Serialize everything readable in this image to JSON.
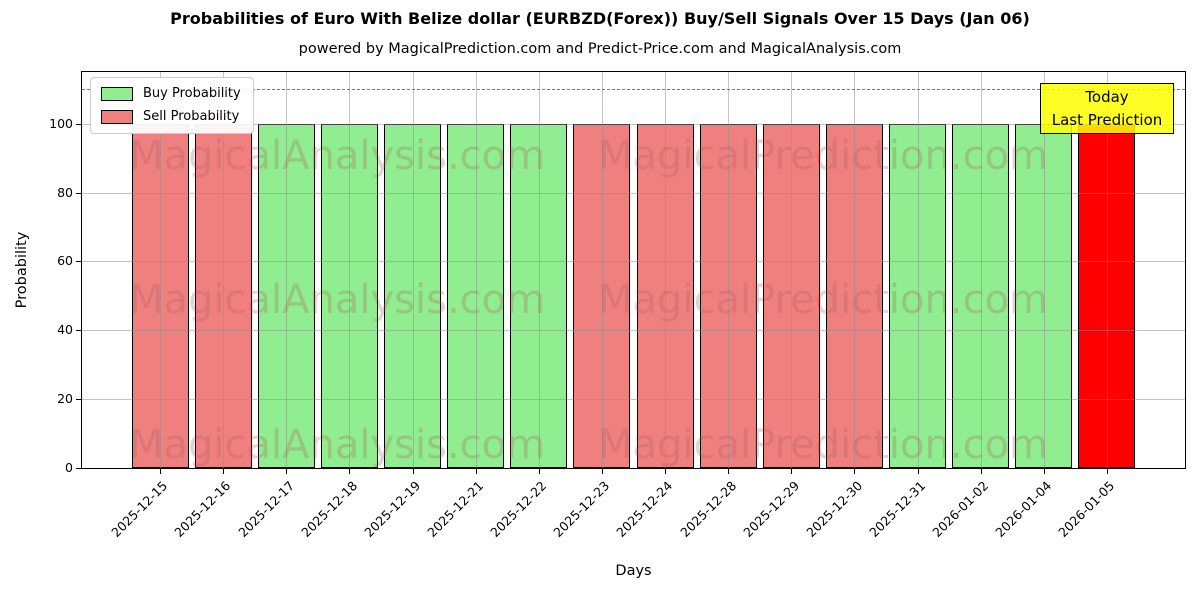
{
  "header": {
    "title": "Probabilities of Euro With Belize dollar (EURBZD(Forex)) Buy/Sell Signals Over 15 Days (Jan 06)",
    "subtitle": "powered by MagicalPrediction.com and Predict-Price.com and MagicalAnalysis.com"
  },
  "chart_data": {
    "type": "bar",
    "title": "Probabilities of Euro With Belize dollar (EURBZD(Forex)) Buy/Sell Signals Over 15 Days (Jan 06)",
    "xlabel": "Days",
    "ylabel": "Probability",
    "ylim": [
      0,
      115
    ],
    "yticks": [
      0,
      20,
      40,
      60,
      80,
      100
    ],
    "grid": true,
    "categories": [
      "2025-12-15",
      "2025-12-16",
      "2025-12-17",
      "2025-12-18",
      "2025-12-19",
      "2025-12-21",
      "2025-12-22",
      "2025-12-23",
      "2025-12-24",
      "2025-12-28",
      "2025-12-29",
      "2025-12-30",
      "2025-12-31",
      "2026-01-02",
      "2026-01-04",
      "2026-01-05"
    ],
    "values": [
      100,
      100,
      100,
      100,
      100,
      100,
      100,
      100,
      100,
      100,
      100,
      100,
      100,
      100,
      100,
      100
    ],
    "bar_signals": [
      "sell",
      "sell",
      "buy",
      "buy",
      "buy",
      "buy",
      "buy",
      "sell",
      "sell",
      "sell",
      "sell",
      "sell",
      "buy",
      "buy",
      "buy",
      "today"
    ],
    "signal_colors": {
      "buy": "#90ee90",
      "sell": "#f08080",
      "today": "#ff0000"
    },
    "dashed_line_y": 110,
    "legend": {
      "position": "upper left",
      "entries": [
        {
          "label": "Buy Probability",
          "color": "#90ee90",
          "signal": "buy"
        },
        {
          "label": "Sell Probability",
          "color": "#f08080",
          "signal": "sell"
        }
      ]
    },
    "annotation": {
      "lines": [
        "Today",
        "Last Prediction"
      ],
      "bg_color": "#ffff00"
    }
  },
  "watermarks": {
    "left_text": "MagicalAnalysis.com",
    "right_text": "MagicalPrediction.com",
    "color": "rgba(165,95,95,0.28)",
    "rows": 3
  },
  "style_colors": {
    "grid": "rgba(140,140,140,0.5)",
    "dashed_line": "#7a7a7a",
    "bar_edge": "#000000"
  }
}
